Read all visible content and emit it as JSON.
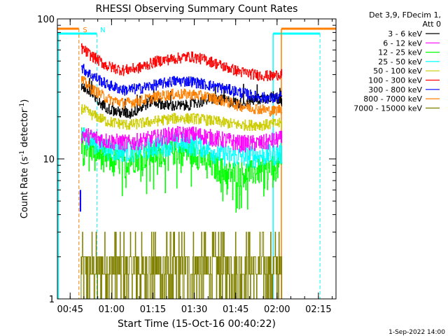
{
  "chart_data": {
    "type": "line",
    "title": "RHESSI Observing Summary Count Rates",
    "xlabel": "Start Time (15-Oct-16 00:40:22)",
    "ylabel_parts": [
      "Count Rate (s",
      "-1",
      " detector",
      "-1",
      ")"
    ],
    "yscale": "log",
    "ylim": [
      1,
      100
    ],
    "xlim_minutes": [
      0,
      101
    ],
    "y_ticks": [
      {
        "value": 1,
        "label": "1"
      },
      {
        "value": 10,
        "label": "10"
      },
      {
        "value": 100,
        "label": "100"
      }
    ],
    "x_ticks": [
      {
        "minute": 4.63,
        "label": "00:45"
      },
      {
        "minute": 19.63,
        "label": "01:00"
      },
      {
        "minute": 34.63,
        "label": "01:15"
      },
      {
        "minute": 49.63,
        "label": "01:30"
      },
      {
        "minute": 64.63,
        "label": "01:45"
      },
      {
        "minute": 79.63,
        "label": "02:00"
      },
      {
        "minute": 94.63,
        "label": "02:15"
      }
    ],
    "legend_header": [
      "Det 3,9, FDecim 1,",
      "Att 0"
    ],
    "legend_placement": "right",
    "data_start_minute": 8.6,
    "data_end_minute": 81.4,
    "series": [
      {
        "name": "3 - 6 keV",
        "color": "#000000",
        "profile": [
          [
            8.6,
            33
          ],
          [
            10,
            32
          ],
          [
            14,
            26
          ],
          [
            20,
            22
          ],
          [
            26,
            21
          ],
          [
            30,
            23
          ],
          [
            34,
            26
          ],
          [
            40,
            24
          ],
          [
            46,
            24
          ],
          [
            50,
            25
          ],
          [
            56,
            27
          ],
          [
            62,
            26
          ],
          [
            66,
            25
          ],
          [
            70,
            26
          ],
          [
            74,
            27
          ],
          [
            78,
            28
          ],
          [
            81.4,
            26
          ]
        ]
      },
      {
        "name": "6 - 12 keV",
        "color": "#ff00ff",
        "profile": [
          [
            8.6,
            15
          ],
          [
            12,
            14.5
          ],
          [
            18,
            13.5
          ],
          [
            26,
            13
          ],
          [
            34,
            14
          ],
          [
            42,
            15
          ],
          [
            50,
            15
          ],
          [
            58,
            14
          ],
          [
            66,
            13
          ],
          [
            74,
            13
          ],
          [
            81.4,
            14
          ]
        ]
      },
      {
        "name": "12 - 25 keV",
        "color": "#00ff00",
        "profile": [
          [
            8.6,
            14
          ],
          [
            12,
            12
          ],
          [
            18,
            10
          ],
          [
            24,
            9.5
          ],
          [
            30,
            10.5
          ],
          [
            36,
            11
          ],
          [
            44,
            11.5
          ],
          [
            50,
            11
          ],
          [
            56,
            9
          ],
          [
            62,
            8
          ],
          [
            70,
            8
          ],
          [
            76,
            8.5
          ],
          [
            81.4,
            9
          ]
        ]
      },
      {
        "name": "25 - 50 keV",
        "color": "#00ffff",
        "profile": [
          [
            8.6,
            15
          ],
          [
            14,
            13
          ],
          [
            20,
            11.5
          ],
          [
            28,
            11.5
          ],
          [
            36,
            12.5
          ],
          [
            44,
            13
          ],
          [
            52,
            12.5
          ],
          [
            58,
            11
          ],
          [
            64,
            10.5
          ],
          [
            72,
            10.5
          ],
          [
            81.4,
            11
          ]
        ]
      },
      {
        "name": "50 - 100 keV",
        "color": "#cccc00",
        "profile": [
          [
            8.6,
            23
          ],
          [
            12,
            21
          ],
          [
            18,
            18.5
          ],
          [
            26,
            17.5
          ],
          [
            34,
            18.5
          ],
          [
            42,
            19.5
          ],
          [
            50,
            19.5
          ],
          [
            58,
            18.5
          ],
          [
            66,
            17.5
          ],
          [
            74,
            17.5
          ],
          [
            81.4,
            18
          ]
        ]
      },
      {
        "name": "100 - 300 keV",
        "color": "#ff0000",
        "profile": [
          [
            8.6,
            62
          ],
          [
            12,
            55
          ],
          [
            18,
            46
          ],
          [
            24,
            43
          ],
          [
            30,
            45
          ],
          [
            36,
            50
          ],
          [
            42,
            52
          ],
          [
            48,
            54
          ],
          [
            54,
            51
          ],
          [
            60,
            46
          ],
          [
            66,
            42
          ],
          [
            72,
            40
          ],
          [
            78,
            39
          ],
          [
            81.4,
            41
          ]
        ]
      },
      {
        "name": "300 - 800 keV",
        "color": "#0000ff",
        "profile": [
          [
            8.6,
            45
          ],
          [
            12,
            40
          ],
          [
            18,
            34
          ],
          [
            24,
            31
          ],
          [
            30,
            32
          ],
          [
            36,
            34
          ],
          [
            42,
            36
          ],
          [
            48,
            36
          ],
          [
            54,
            34
          ],
          [
            60,
            32
          ],
          [
            66,
            30
          ],
          [
            72,
            28
          ],
          [
            78,
            27
          ],
          [
            81.4,
            28
          ]
        ]
      },
      {
        "name": "800 - 7000 keV",
        "color": "#ff8000",
        "profile": [
          [
            8.6,
            37
          ],
          [
            12,
            32
          ],
          [
            18,
            27
          ],
          [
            24,
            25
          ],
          [
            30,
            26
          ],
          [
            36,
            28
          ],
          [
            42,
            29
          ],
          [
            48,
            29
          ],
          [
            54,
            28
          ],
          [
            60,
            26
          ],
          [
            66,
            24
          ],
          [
            72,
            23
          ],
          [
            78,
            22
          ],
          [
            81.4,
            23
          ]
        ]
      },
      {
        "name": "7000 - 15000 keV",
        "color": "#808000",
        "profile": [
          [
            8.6,
            1.6
          ],
          [
            81.4,
            1.6
          ]
        ]
      }
    ],
    "annotations": [
      {
        "label": "S",
        "minute": 8.2,
        "color": "#ff8000"
      },
      {
        "label": "N",
        "minute": 14.5,
        "color": "#00ffff"
      }
    ],
    "footer": "1-Sep-2022 14:00"
  }
}
